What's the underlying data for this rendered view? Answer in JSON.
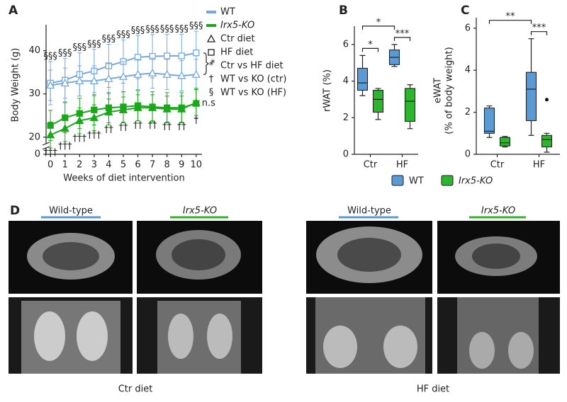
{
  "chart_data": [
    {
      "type": "line",
      "panel_label": "A",
      "ylabel": "Body Weight (g)",
      "xlabel": "Weeks of diet intervention",
      "x": [
        0,
        1,
        2,
        3,
        4,
        5,
        6,
        7,
        8,
        9,
        10
      ],
      "xlim": [
        -0.3,
        10.4
      ],
      "xticks": [
        0,
        1,
        2,
        3,
        4,
        5,
        6,
        7,
        8,
        9,
        10
      ],
      "ylim": [
        0,
        46
      ],
      "y_break": [
        1,
        18
      ],
      "yticks": [
        0,
        20,
        30,
        40
      ],
      "series": [
        {
          "color": "#74a9e0",
          "marker": "square",
          "open": true,
          "values": [
            32.5,
            33.2,
            34.5,
            35.3,
            36.5,
            37.5,
            38.5,
            38.7,
            38.8,
            38.8,
            39.5
          ],
          "errors": [
            5,
            5,
            5,
            5,
            5,
            5,
            5,
            5,
            5,
            5,
            5
          ]
        },
        {
          "color": "#74a9e0",
          "marker": "triangle",
          "open": true,
          "values": [
            32,
            32.5,
            33,
            33,
            33.5,
            34,
            34.5,
            34.8,
            34.5,
            34.2,
            34.5
          ],
          "errors": [
            3.5,
            3.5,
            3.5,
            3.5,
            3.5,
            3.5,
            3.5,
            3.5,
            3.5,
            3.5,
            3.5
          ]
        },
        {
          "color": "#1aa81a",
          "marker": "square",
          "open": false,
          "values": [
            22.7,
            24.5,
            25.5,
            26.3,
            26.8,
            27,
            27.3,
            27,
            26.8,
            26.8,
            27.8
          ],
          "errors": [
            3.5,
            3.5,
            3.5,
            3.5,
            3.5,
            3.5,
            3.5,
            3.5,
            3.5,
            3.5,
            3.5
          ]
        },
        {
          "color": "#1aa81a",
          "marker": "triangle",
          "open": false,
          "values": [
            20.5,
            22,
            23.8,
            24.5,
            25.8,
            26.3,
            26.8,
            26.8,
            26.5,
            26.5,
            28
          ],
          "errors": [
            3,
            3,
            3,
            3,
            3,
            3,
            3,
            3,
            3,
            3,
            3
          ]
        }
      ],
      "hf_marks": [
        "§§§",
        "§§§",
        "§§§",
        "§§§",
        "§§§",
        "§§§",
        "§§§",
        "§§§",
        "§§§",
        "§§§",
        "§§§"
      ],
      "ctr_marks": [
        "†††",
        "†††",
        "†††",
        "†††",
        "††",
        "††",
        "††",
        "††",
        "††",
        "††",
        "†"
      ],
      "diet_mark": "*",
      "ns_label": "n.s",
      "legend": [
        {
          "label": "WT",
          "symbol": "line",
          "color": "#74a9e0"
        },
        {
          "label": "Irx5-KO",
          "symbol": "line",
          "color": "#1aa81a"
        },
        {
          "label": "Ctr diet",
          "symbol": "triangle",
          "color": "#222222"
        },
        {
          "label": "HF diet",
          "symbol": "square",
          "color": "#222222"
        },
        {
          "label": "Ctr vs HF diet",
          "symbol_text": "*"
        },
        {
          "label": "WT vs KO (ctr)",
          "symbol_text": "†"
        },
        {
          "label": "WT vs KO (HF)",
          "symbol_text": "§"
        }
      ]
    },
    {
      "type": "box",
      "panel_label": "B",
      "ylabel": [
        "rWAT (%)"
      ],
      "categories": [
        "Ctr",
        "HF"
      ],
      "ylim": [
        0,
        7
      ],
      "yticks": [
        0,
        2,
        4,
        6
      ],
      "series": [
        {
          "name": "WT",
          "color": "#5b9bd5",
          "boxes": [
            {
              "min": 3.2,
              "q1": 3.5,
              "median": 3.9,
              "q3": 4.7,
              "max": 5.4
            },
            {
              "min": 4.8,
              "q1": 4.9,
              "median": 5.3,
              "q3": 5.7,
              "max": 6.0
            }
          ]
        },
        {
          "name": "Irx5-KO",
          "color": "#2db52d",
          "boxes": [
            {
              "min": 1.9,
              "q1": 2.3,
              "median": 3.0,
              "q3": 3.5,
              "max": 3.6
            },
            {
              "min": 1.4,
              "q1": 1.8,
              "median": 2.9,
              "q3": 3.6,
              "max": 3.8
            }
          ]
        }
      ],
      "brackets": [
        {
          "from": [
            0,
            0
          ],
          "to": [
            0,
            1
          ],
          "label": "*"
        },
        {
          "from": [
            1,
            0
          ],
          "to": [
            1,
            1
          ],
          "label": "***"
        },
        {
          "from": [
            0,
            0
          ],
          "to": [
            1,
            0
          ],
          "label": "*"
        }
      ]
    },
    {
      "type": "box",
      "panel_label": "C",
      "ylabel": [
        "eWAT",
        "(% of body weight)"
      ],
      "categories": [
        "Ctr",
        "HF"
      ],
      "ylim": [
        0,
        6.5
      ],
      "yticks": [
        0,
        2,
        4,
        6
      ],
      "series": [
        {
          "color": "#5b9bd5",
          "boxes": [
            {
              "min": 0.8,
              "q1": 1.0,
              "median": 1.1,
              "q3": 2.2,
              "max": 2.3
            },
            {
              "min": 0.9,
              "q1": 1.6,
              "median": 3.1,
              "q3": 3.9,
              "max": 5.5
            }
          ],
          "outliers": [
            [],
            []
          ]
        },
        {
          "color": "#2db52d",
          "boxes": [
            {
              "min": 0.35,
              "q1": 0.4,
              "median": 0.55,
              "q3": 0.8,
              "max": 0.85
            },
            {
              "min": 0.1,
              "q1": 0.35,
              "median": 0.7,
              "q3": 0.9,
              "max": 1.0
            }
          ],
          "outliers": [
            [],
            [
              2.6
            ]
          ]
        }
      ],
      "brackets": [
        {
          "from": [
            0,
            0
          ],
          "to": [
            1,
            0
          ],
          "label": "**"
        },
        {
          "from": [
            1,
            0
          ],
          "to": [
            1,
            1
          ],
          "label": "***"
        }
      ]
    }
  ],
  "panel_d": {
    "label": "D",
    "groups": [
      {
        "caption": "Ctr diet",
        "columns": [
          "Wild-type",
          "Irx5-KO"
        ]
      },
      {
        "caption": "HF diet",
        "columns": [
          "Wild-type",
          "Irx5-KO"
        ]
      }
    ]
  }
}
